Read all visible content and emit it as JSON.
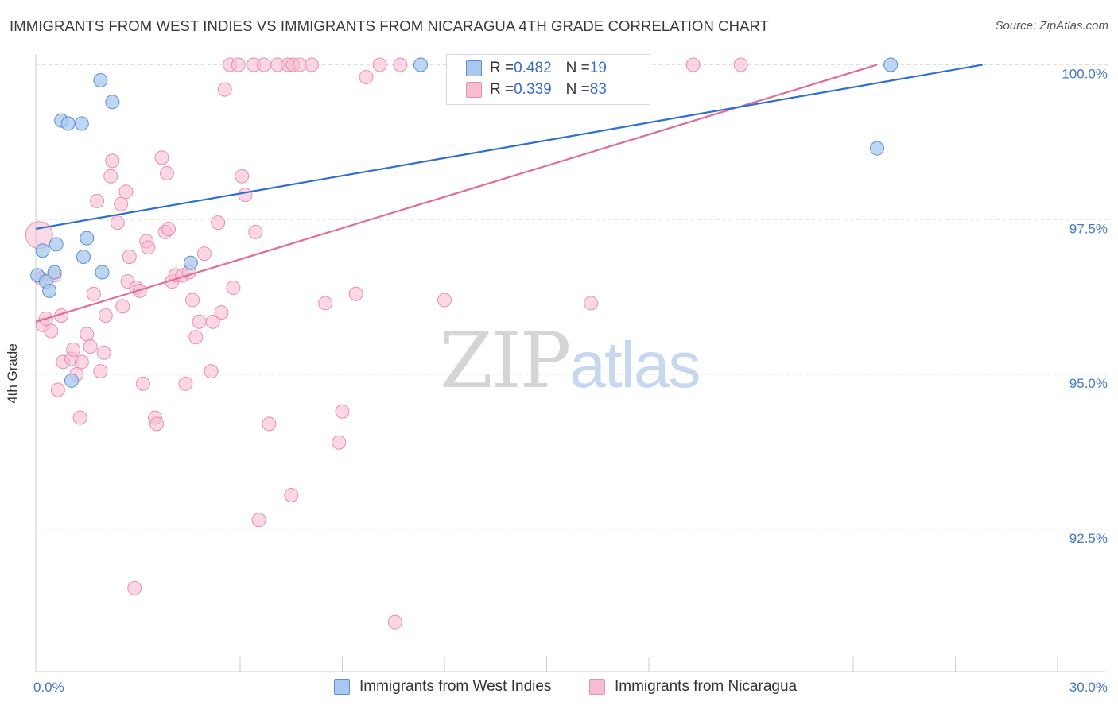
{
  "title": "IMMIGRANTS FROM WEST INDIES VS IMMIGRANTS FROM NICARAGUA 4TH GRADE CORRELATION CHART",
  "source": "Source: ZipAtlas.com",
  "watermark": {
    "zip": "ZIP",
    "atlas": "atlas"
  },
  "colors": {
    "blue_fill": "#a9c8ef",
    "blue_stroke": "#5b8fd6",
    "blue_line": "#2f6fcf",
    "pink_fill": "#f6bcd0",
    "pink_stroke": "#e68fae",
    "pink_line": "#e06d98",
    "grid": "#dddddd",
    "axis_text": "#4477c9"
  },
  "legend_top": {
    "rows": [
      {
        "r_label": "R = ",
        "r_value": "0.482",
        "n_label": "N = ",
        "n_value": "19"
      },
      {
        "r_label": "R = ",
        "r_value": "0.339",
        "n_label": "N = ",
        "n_value": "83"
      }
    ]
  },
  "legend_bottom": {
    "series1": "Immigrants from West Indies",
    "series2": "Immigrants from Nicaragua"
  },
  "chart_data": {
    "type": "scatter",
    "title": "IMMIGRANTS FROM WEST INDIES VS IMMIGRANTS FROM NICARAGUA 4TH GRADE CORRELATION CHART",
    "xlabel": "",
    "ylabel": "4th Grade",
    "xlim": [
      0,
      30
    ],
    "ylim": [
      90.2,
      100.25
    ],
    "x_tick_labels": [
      "0.0%",
      "30.0%"
    ],
    "y_ticks": [
      92.5,
      95.0,
      97.5,
      100.0
    ],
    "y_tick_labels": [
      "92.5%",
      "95.0%",
      "97.5%",
      "100.0%"
    ],
    "series": [
      {
        "name": "Immigrants from West Indies",
        "r": 0.482,
        "n": 19,
        "trend": {
          "x": [
            0.0,
            27.8
          ],
          "y": [
            97.35,
            100.0
          ]
        },
        "points": [
          [
            0.05,
            96.6
          ],
          [
            0.2,
            97.0
          ],
          [
            0.3,
            96.5
          ],
          [
            0.4,
            96.35
          ],
          [
            0.55,
            96.65
          ],
          [
            0.6,
            97.1
          ],
          [
            0.75,
            99.1
          ],
          [
            0.95,
            99.05
          ],
          [
            1.35,
            99.05
          ],
          [
            1.4,
            96.9
          ],
          [
            1.5,
            97.2
          ],
          [
            1.05,
            94.9
          ],
          [
            1.9,
            99.75
          ],
          [
            1.95,
            96.65
          ],
          [
            2.25,
            99.4
          ],
          [
            4.55,
            96.8
          ],
          [
            11.3,
            100.0
          ],
          [
            24.7,
            98.65
          ],
          [
            25.1,
            100.0
          ]
        ]
      },
      {
        "name": "Immigrants from Nicaragua",
        "r": 0.339,
        "n": 83,
        "trend": {
          "x": [
            0.0,
            24.7
          ],
          "y": [
            95.85,
            100.0
          ]
        },
        "points": [
          [
            0.1,
            97.25
          ],
          [
            0.15,
            96.55
          ],
          [
            0.2,
            95.8
          ],
          [
            0.3,
            95.9
          ],
          [
            0.45,
            95.7
          ],
          [
            0.55,
            96.6
          ],
          [
            0.65,
            94.75
          ],
          [
            0.75,
            95.95
          ],
          [
            0.8,
            95.2
          ],
          [
            1.05,
            95.25
          ],
          [
            1.1,
            95.4
          ],
          [
            1.2,
            95.0
          ],
          [
            1.3,
            94.3
          ],
          [
            1.35,
            95.2
          ],
          [
            1.5,
            95.65
          ],
          [
            1.6,
            95.45
          ],
          [
            1.7,
            96.3
          ],
          [
            1.8,
            97.8
          ],
          [
            1.9,
            95.05
          ],
          [
            2.0,
            95.35
          ],
          [
            2.05,
            95.95
          ],
          [
            2.2,
            98.2
          ],
          [
            2.25,
            98.45
          ],
          [
            2.4,
            97.45
          ],
          [
            2.5,
            97.75
          ],
          [
            2.55,
            96.1
          ],
          [
            2.65,
            97.95
          ],
          [
            2.7,
            96.5
          ],
          [
            2.75,
            96.9
          ],
          [
            2.9,
            91.55
          ],
          [
            2.95,
            96.4
          ],
          [
            3.05,
            96.35
          ],
          [
            3.15,
            94.85
          ],
          [
            3.25,
            97.15
          ],
          [
            3.3,
            97.05
          ],
          [
            3.5,
            94.3
          ],
          [
            3.55,
            94.2
          ],
          [
            3.7,
            98.5
          ],
          [
            3.8,
            97.3
          ],
          [
            3.85,
            98.25
          ],
          [
            3.9,
            97.35
          ],
          [
            4.0,
            96.5
          ],
          [
            4.1,
            96.6
          ],
          [
            4.3,
            96.6
          ],
          [
            4.4,
            94.85
          ],
          [
            4.5,
            96.65
          ],
          [
            4.6,
            96.2
          ],
          [
            4.7,
            95.6
          ],
          [
            4.8,
            95.85
          ],
          [
            4.95,
            96.95
          ],
          [
            5.15,
            95.05
          ],
          [
            5.2,
            95.85
          ],
          [
            5.35,
            97.45
          ],
          [
            5.45,
            96.0
          ],
          [
            5.55,
            99.6
          ],
          [
            5.7,
            100.0
          ],
          [
            5.8,
            96.4
          ],
          [
            5.95,
            100.0
          ],
          [
            6.05,
            98.2
          ],
          [
            6.15,
            97.9
          ],
          [
            6.4,
            100.0
          ],
          [
            6.45,
            97.3
          ],
          [
            6.55,
            92.65
          ],
          [
            6.7,
            100.0
          ],
          [
            6.85,
            94.2
          ],
          [
            7.1,
            100.0
          ],
          [
            7.4,
            100.0
          ],
          [
            7.5,
            93.05
          ],
          [
            7.55,
            100.0
          ],
          [
            7.75,
            100.0
          ],
          [
            8.1,
            100.0
          ],
          [
            8.5,
            96.15
          ],
          [
            8.9,
            93.9
          ],
          [
            9.0,
            94.4
          ],
          [
            9.4,
            96.3
          ],
          [
            9.7,
            99.8
          ],
          [
            10.1,
            100.0
          ],
          [
            10.55,
            91.0
          ],
          [
            10.7,
            100.0
          ],
          [
            12.0,
            96.2
          ],
          [
            16.3,
            96.15
          ],
          [
            19.3,
            100.0
          ],
          [
            20.7,
            100.0
          ]
        ]
      }
    ]
  }
}
